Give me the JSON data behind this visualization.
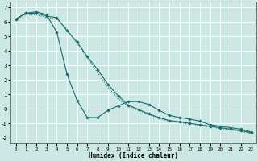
{
  "xlabel": "Humidex (Indice chaleur)",
  "background_color": "#cce8e4",
  "grid_color": "#ffffff",
  "line_color": "#1a6b6b",
  "xlim": [
    -0.5,
    23.5
  ],
  "ylim": [
    -2.4,
    7.4
  ],
  "yticks": [
    -2,
    -1,
    0,
    1,
    2,
    3,
    4,
    5,
    6,
    7
  ],
  "xticks": [
    0,
    1,
    2,
    3,
    4,
    5,
    6,
    7,
    8,
    9,
    10,
    11,
    12,
    13,
    14,
    15,
    16,
    17,
    18,
    19,
    20,
    21,
    22,
    23
  ],
  "line1_x": [
    0,
    1,
    2,
    3,
    4,
    5,
    6,
    7,
    8,
    9,
    10,
    11,
    12,
    13,
    14,
    15,
    16,
    17,
    18,
    19,
    20,
    21,
    22,
    23
  ],
  "line1_y": [
    6.2,
    6.6,
    6.7,
    6.5,
    5.3,
    2.4,
    0.55,
    -0.6,
    -0.6,
    -0.1,
    0.2,
    0.5,
    0.5,
    0.3,
    -0.1,
    -0.45,
    -0.6,
    -0.7,
    -0.85,
    -1.1,
    -1.2,
    -1.3,
    -1.4,
    -1.6
  ],
  "line2_x": [
    0,
    1,
    2,
    3,
    4,
    5,
    6,
    7,
    8,
    9,
    10,
    11,
    12,
    13,
    14,
    15,
    16,
    17,
    18,
    19,
    20,
    21,
    22,
    23
  ],
  "line2_y": [
    6.2,
    6.6,
    6.6,
    6.4,
    6.3,
    5.4,
    4.6,
    3.6,
    2.7,
    1.7,
    0.9,
    0.25,
    -0.05,
    -0.35,
    -0.6,
    -0.8,
    -0.9,
    -1.0,
    -1.1,
    -1.2,
    -1.3,
    -1.4,
    -1.5,
    -1.65
  ],
  "line3_x": [
    0,
    1,
    2,
    3,
    4,
    5,
    6,
    7,
    8,
    9,
    10,
    11,
    12,
    13,
    14,
    15,
    16,
    17,
    18,
    19,
    20,
    21,
    22,
    23
  ],
  "line3_y": [
    6.2,
    6.5,
    6.5,
    6.3,
    6.2,
    5.5,
    4.5,
    3.5,
    2.5,
    1.5,
    0.7,
    0.15,
    -0.1,
    -0.4,
    -0.65,
    -0.85,
    -0.95,
    -1.05,
    -1.15,
    -1.25,
    -1.35,
    -1.45,
    -1.55,
    -1.7
  ]
}
